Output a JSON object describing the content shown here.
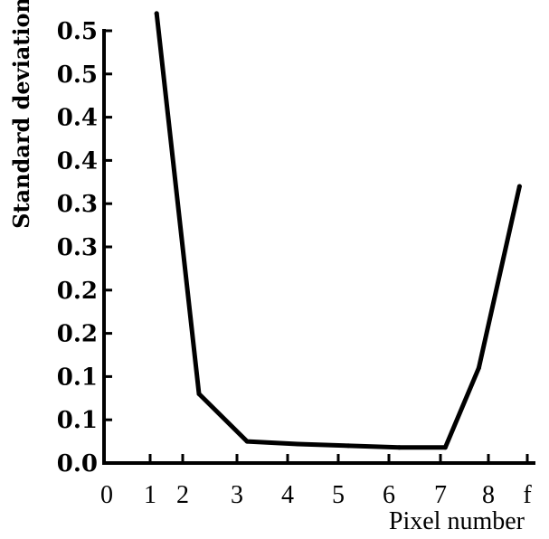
{
  "chart_data": {
    "type": "line",
    "xlabel": "Pixel number",
    "ylabel": "Standard deviation",
    "x_tick_labels": [
      "0",
      "1",
      "2",
      "3",
      "4",
      "5",
      "6",
      "7",
      "8",
      "f"
    ],
    "y_tick_labels": [
      "0.5",
      "0.5",
      "0.4",
      "0.4",
      "0.3",
      "0.3",
      "0.2",
      "0.2",
      "0.1",
      "0.1",
      "0.0"
    ],
    "series": [
      {
        "x": [
          1.2,
          2.3,
          3.2,
          4.2,
          5.2,
          6.2,
          7.1,
          7.8,
          8.8
        ],
        "y": [
          0.52,
          0.08,
          0.025,
          0.022,
          0.02,
          0.018,
          0.018,
          0.11,
          0.32
        ]
      }
    ],
    "grid": false
  }
}
